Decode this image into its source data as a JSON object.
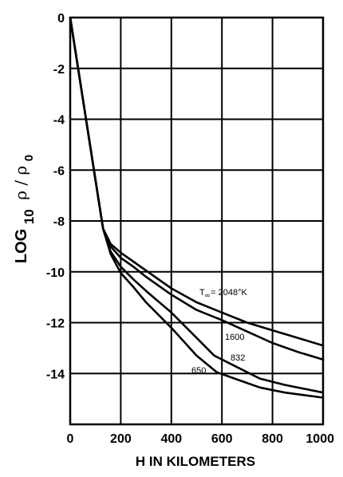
{
  "chart_data": {
    "type": "line",
    "title": "",
    "xlabel": "H IN KILOMETERS",
    "ylabel": {
      "main": "LOG",
      "subscript": "10",
      "ratio_symbol": "ρ / ρ",
      "ratio_subscript": "0"
    },
    "xlim": [
      0,
      1000
    ],
    "ylim": [
      -16,
      0
    ],
    "x_ticks": [
      0,
      200,
      400,
      600,
      800,
      1000
    ],
    "x_tick_labels": [
      "0",
      "200",
      "400",
      "600",
      "800",
      "1000"
    ],
    "y_ticks": [
      0,
      -2,
      -4,
      -6,
      -8,
      -10,
      -12,
      -14
    ],
    "y_tick_labels": [
      "0",
      "-2",
      "-4",
      "-6",
      "-8",
      "-10",
      "-12",
      "-14"
    ],
    "grid": true,
    "series": [
      {
        "name": "T∞ = 2048°K",
        "x": [
          0,
          130,
          160,
          200,
          250,
          300,
          400,
          500,
          600,
          700,
          800,
          900,
          1000
        ],
        "y": [
          0,
          -8.3,
          -8.9,
          -9.25,
          -9.6,
          -9.95,
          -10.65,
          -11.2,
          -11.6,
          -12.0,
          -12.3,
          -12.6,
          -12.9
        ]
      },
      {
        "name": "1600",
        "x": [
          0,
          130,
          160,
          200,
          250,
          300,
          400,
          500,
          600,
          700,
          800,
          900,
          1000
        ],
        "y": [
          0,
          -8.3,
          -9.0,
          -9.45,
          -9.8,
          -10.2,
          -10.9,
          -11.5,
          -11.9,
          -12.35,
          -12.8,
          -13.15,
          -13.45
        ]
      },
      {
        "name": "832",
        "x": [
          0,
          130,
          160,
          200,
          250,
          300,
          400,
          500,
          570,
          650,
          750,
          850,
          1000
        ],
        "y": [
          0,
          -8.3,
          -9.2,
          -9.8,
          -10.3,
          -10.75,
          -11.6,
          -12.6,
          -13.3,
          -13.7,
          -14.2,
          -14.45,
          -14.75
        ]
      },
      {
        "name": "650",
        "x": [
          0,
          130,
          160,
          200,
          250,
          300,
          400,
          500,
          580,
          650,
          750,
          850,
          1000
        ],
        "y": [
          0,
          -8.3,
          -9.3,
          -10.05,
          -10.6,
          -11.2,
          -12.2,
          -13.3,
          -13.95,
          -14.2,
          -14.55,
          -14.75,
          -14.95
        ]
      }
    ],
    "annotations": [
      {
        "series": 0,
        "text_main": "T",
        "text_sub": "∞",
        "text_rest": "= 2048°K"
      },
      {
        "series": 1,
        "text": "1600"
      },
      {
        "series": 2,
        "text": "832"
      },
      {
        "series": 3,
        "text": "650"
      }
    ]
  }
}
